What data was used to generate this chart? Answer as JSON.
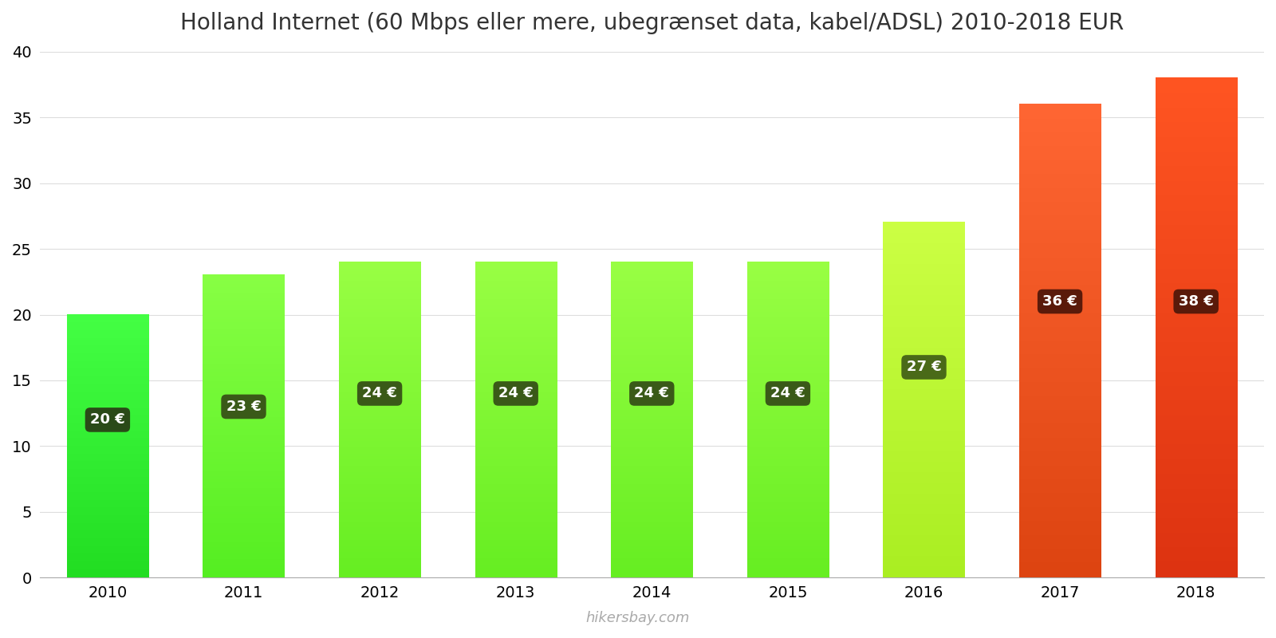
{
  "title": "Holland Internet (60 Mbps eller mere, ubegrænset data, kabel/ADSL) 2010-2018 EUR",
  "years": [
    2010,
    2011,
    2012,
    2013,
    2014,
    2015,
    2016,
    2017,
    2018
  ],
  "values": [
    20,
    23,
    24,
    24,
    24,
    24,
    27,
    36,
    38
  ],
  "bar_colors_bottom": [
    "#22dd22",
    "#55ee22",
    "#66ee22",
    "#66ee22",
    "#66ee22",
    "#66ee22",
    "#aaee22",
    "#dd4411",
    "#dd3311"
  ],
  "bar_colors_top": [
    "#44ff44",
    "#88ff44",
    "#99ff44",
    "#99ff44",
    "#99ff44",
    "#99ff44",
    "#ccff44",
    "#ff6633",
    "#ff5522"
  ],
  "label_bg_colors": [
    "#2a4a18",
    "#3a5a18",
    "#3a5a18",
    "#3a5a18",
    "#3a5a18",
    "#3a5a18",
    "#4a6a18",
    "#5a1a0a",
    "#5a1a0a"
  ],
  "labels": [
    "20 €",
    "23 €",
    "24 €",
    "24 €",
    "24 €",
    "24 €",
    "27 €",
    "36 €",
    "38 €"
  ],
  "label_y_positions": [
    12.0,
    13.0,
    14.0,
    14.0,
    14.0,
    14.0,
    16.0,
    21.0,
    21.0
  ],
  "ylim": [
    0,
    40
  ],
  "yticks": [
    0,
    5,
    10,
    15,
    20,
    25,
    30,
    35,
    40
  ],
  "watermark": "hikersbay.com",
  "background_color": "#ffffff",
  "title_fontsize": 20,
  "tick_fontsize": 14
}
